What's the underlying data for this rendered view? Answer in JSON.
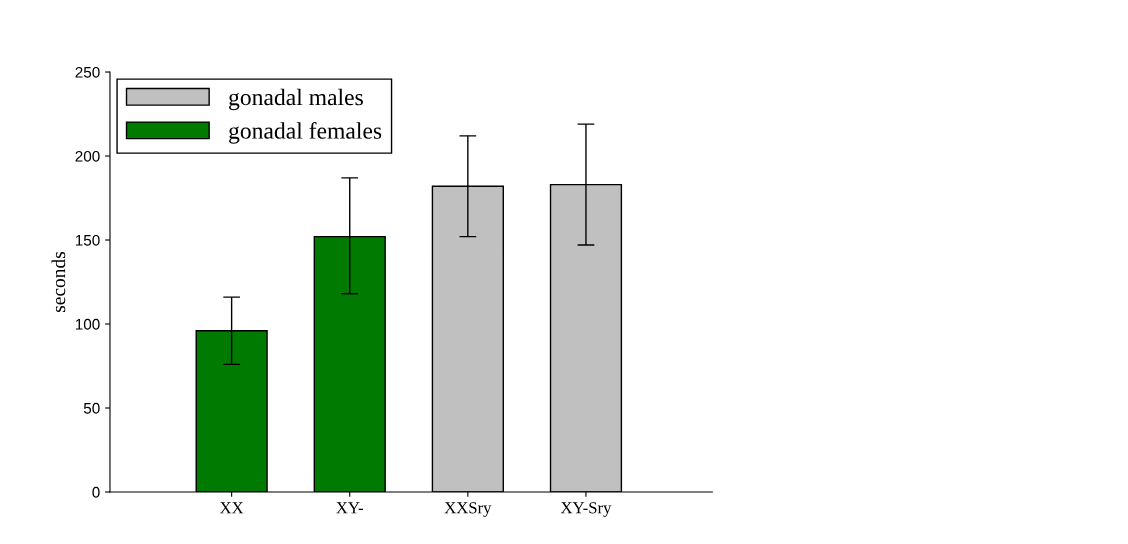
{
  "chart_data": {
    "type": "bar",
    "ylabel": "seconds",
    "categories": [
      "XX",
      "XY-",
      "XXSry",
      "XY-Sry"
    ],
    "series": [
      {
        "name": "gonadal males",
        "color": "#c0c0c0",
        "values": [
          null,
          null,
          182,
          183
        ],
        "errors": [
          null,
          null,
          [
            152,
            212
          ],
          [
            147,
            219
          ]
        ]
      },
      {
        "name": "gonadal females",
        "color": "#007a00",
        "values": [
          96,
          152,
          null,
          null
        ],
        "errors": [
          [
            76,
            116
          ],
          [
            118,
            187
          ],
          null,
          null
        ]
      }
    ],
    "ylim": [
      0,
      250
    ],
    "yticks": [
      0,
      50,
      100,
      150,
      200,
      250
    ],
    "grid": false,
    "legend": "top left"
  }
}
